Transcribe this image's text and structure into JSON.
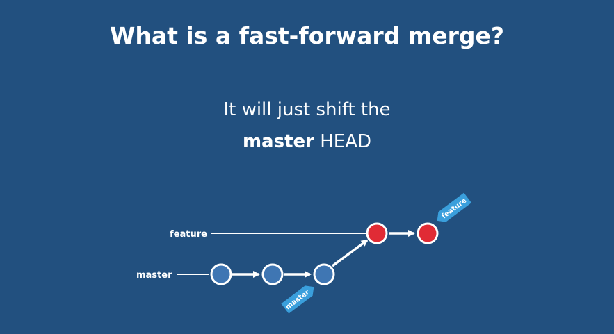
{
  "title": "What is a fast-forward merge?",
  "subtitle": {
    "line1": "It will just shift the",
    "line2_bold": "master",
    "line2_rest": " HEAD"
  },
  "diagram": {
    "branches": {
      "feature": "feature",
      "master": "master"
    },
    "tags": {
      "master": "master",
      "feature": "feature"
    },
    "colors": {
      "background": "#22507f",
      "master_commit": "#3f76b3",
      "feature_commit": "#e02b35",
      "tag": "#3a9fdc",
      "line": "#ffffff"
    }
  }
}
